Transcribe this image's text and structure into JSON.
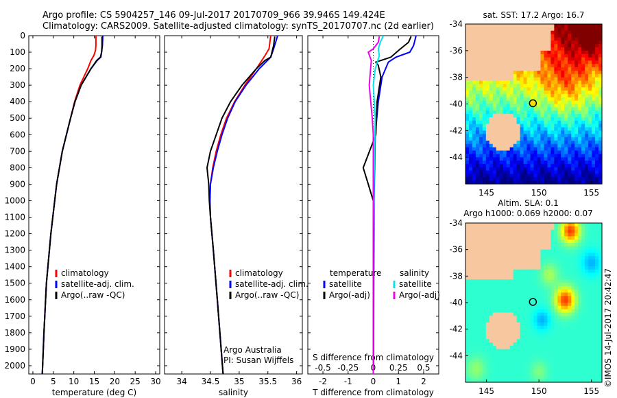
{
  "header": {
    "line1": "Argo profile: CS 5904257_146 09-Jul-2017 20170709_966 39.946S 149.424E",
    "line2": "Climatology: CARS2009. Satellite-adjusted climatology: synTS_20170707.nc (2d earlier)"
  },
  "colors": {
    "climatology": "#ff0000",
    "satellite": "#0000ff",
    "argo": "#000000",
    "sat_salinity": "#00e5ee",
    "argo_salinity": "#ee00ee",
    "land": "#f7c8a0"
  },
  "depth_axis": {
    "ylim": [
      0,
      2050
    ],
    "ticks": [
      0,
      100,
      200,
      300,
      400,
      500,
      600,
      700,
      800,
      900,
      1000,
      1100,
      1200,
      1300,
      1400,
      1500,
      1600,
      1700,
      1800,
      1900,
      2000
    ]
  },
  "chart_data": [
    {
      "type": "line",
      "id": "temperature",
      "xlabel": "temperature (deg C)",
      "xlim": [
        -1,
        31
      ],
      "xticks": [
        0,
        5,
        10,
        15,
        20,
        25,
        30
      ],
      "legend": [
        "climatology",
        "satellite-adj. clim.",
        "Argo(..raw -QC)"
      ],
      "series": [
        {
          "name": "climatology",
          "color": "#ff0000",
          "depth": [
            0,
            60,
            90,
            120,
            150,
            200,
            300,
            400,
            500,
            700,
            900,
            1200,
            1500,
            1800,
            2050
          ],
          "values": [
            15.4,
            15.4,
            15.3,
            14.9,
            14.2,
            13.4,
            11.5,
            10.2,
            9.2,
            7.2,
            5.8,
            4.4,
            3.3,
            2.7,
            2.3
          ]
        },
        {
          "name": "satellite",
          "color": "#0000ff",
          "depth": [
            0,
            60,
            100,
            130,
            150,
            200,
            300,
            400,
            500,
            700,
            900,
            1200,
            1500,
            1800,
            2050
          ],
          "values": [
            17.1,
            17.0,
            16.8,
            16.6,
            15.7,
            14.2,
            11.8,
            10.3,
            9.2,
            7.2,
            5.8,
            4.4,
            3.3,
            2.7,
            2.3
          ]
        },
        {
          "name": "Argo",
          "color": "#000000",
          "depth": [
            5,
            60,
            100,
            130,
            150,
            200,
            300,
            400,
            500,
            700,
            900,
            1200,
            1500,
            1800,
            2050
          ],
          "values": [
            16.9,
            16.9,
            16.8,
            16.5,
            15.6,
            14.2,
            11.8,
            10.3,
            9.2,
            7.2,
            5.8,
            4.4,
            3.3,
            2.7,
            2.3
          ]
        }
      ]
    },
    {
      "type": "line",
      "id": "salinity",
      "xlabel": "salinity",
      "xlim": [
        33.7,
        36.1
      ],
      "xticks": [
        34,
        34.5,
        35,
        35.5,
        36
      ],
      "legend": [
        "climatology",
        "satellite-adj. clim.",
        "Argo(..raw -QC)"
      ],
      "annotations": [
        "Argo Australia",
        "PI: Susan Wijffels"
      ],
      "series": [
        {
          "name": "climatology",
          "color": "#ff0000",
          "depth": [
            0,
            80,
            120,
            200,
            300,
            400,
            500,
            600,
            700,
            800,
            900,
            1000,
            1100,
            1300,
            1600,
            2050
          ],
          "values": [
            35.55,
            35.52,
            35.45,
            35.3,
            35.1,
            34.92,
            34.78,
            34.68,
            34.6,
            34.54,
            34.5,
            34.49,
            34.5,
            34.55,
            34.62,
            34.72
          ]
        },
        {
          "name": "satellite",
          "color": "#0000ff",
          "depth": [
            0,
            80,
            130,
            200,
            300,
            400,
            500,
            600,
            700,
            800,
            900,
            1000,
            1100,
            1300,
            1600,
            2050
          ],
          "values": [
            35.67,
            35.6,
            35.55,
            35.35,
            35.12,
            34.93,
            34.8,
            34.7,
            34.62,
            34.55,
            34.5,
            34.49,
            34.5,
            34.55,
            34.62,
            34.72
          ]
        },
        {
          "name": "Argo",
          "color": "#000000",
          "depth": [
            5,
            60,
            130,
            150,
            200,
            300,
            400,
            500,
            600,
            700,
            800,
            900,
            1000,
            1100,
            1300,
            1600,
            2050
          ],
          "values": [
            35.62,
            35.6,
            35.55,
            35.45,
            35.3,
            35.05,
            34.85,
            34.7,
            34.6,
            34.5,
            34.44,
            34.47,
            34.48,
            34.5,
            34.55,
            34.62,
            34.72
          ]
        }
      ]
    },
    {
      "type": "line",
      "id": "differences",
      "xlabel": "T difference from climatology",
      "xlabel_top": "S difference from climatology",
      "xlim": [
        -2.6,
        2.6
      ],
      "xticks": [
        -2,
        -1,
        0,
        1,
        2
      ],
      "sticks": [
        "-0.5",
        "-0.25",
        "0",
        "0.25",
        "0.5"
      ],
      "legend_t_title": "temperature",
      "legend_s_title": "salinity",
      "legend_t": [
        "satellite",
        "Argo(-adj)"
      ],
      "legend_s": [
        "satellite",
        "Argo(-adj)"
      ],
      "series": [
        {
          "name": "T satellite",
          "color": "#0000ff",
          "depth": [
            0,
            30,
            60,
            100,
            130,
            160,
            250,
            400,
            600,
            1000,
            1500,
            2000
          ],
          "values": [
            1.7,
            1.65,
            1.6,
            1.45,
            0.9,
            0.6,
            0.35,
            0.2,
            0.08,
            0.03,
            0.02,
            0.01
          ]
        },
        {
          "name": "T Argo",
          "color": "#000000",
          "depth": [
            5,
            40,
            90,
            130,
            160,
            180,
            250,
            400,
            600,
            800,
            850,
            900,
            950,
            1000,
            1200,
            1500,
            2000
          ],
          "values": [
            1.5,
            1.4,
            1.0,
            0.7,
            0.1,
            0.2,
            0.3,
            0.15,
            0.1,
            -0.4,
            -0.3,
            -0.2,
            -0.1,
            0.0,
            0.0,
            0.0,
            0.0
          ]
        },
        {
          "name": "S satellite",
          "color": "#00e5ee",
          "depth": [
            0,
            40,
            80,
            120,
            200,
            300,
            500,
            800,
            1200,
            1600,
            2050
          ],
          "values": [
            0.1,
            0.07,
            0.05,
            0.06,
            0.02,
            0.0,
            0.02,
            0.01,
            0.0,
            0.0,
            0.0
          ]
        },
        {
          "name": "S Argo",
          "color": "#ee00ee",
          "depth": [
            5,
            40,
            80,
            100,
            150,
            300,
            500,
            600,
            700,
            800,
            900,
            1000,
            1200,
            1600,
            2050
          ],
          "values": [
            0.06,
            0.05,
            0.0,
            -0.05,
            -0.02,
            -0.04,
            -0.01,
            0.0,
            0.0,
            0.0,
            0.0,
            0.0,
            0.0,
            0.0,
            0.0
          ]
        }
      ]
    },
    {
      "type": "heatmap",
      "id": "sst_map",
      "title": "sat. SST: 17.2  Argo: 16.7",
      "xlim": [
        143,
        156
      ],
      "ylim": [
        -46,
        -34
      ],
      "xticks": [
        145,
        150,
        155
      ],
      "yticks": [
        -34,
        -36,
        -38,
        -40,
        -42,
        -44
      ],
      "marker": {
        "lon": 149.424,
        "lat": -39.946
      }
    },
    {
      "type": "heatmap",
      "id": "sla_map",
      "title": "Altim. SLA: 0.1",
      "title2": "Argo h1000: 0.069  h2000: 0.07",
      "xlim": [
        143,
        156
      ],
      "ylim": [
        -46,
        -34
      ],
      "xticks": [
        145,
        150,
        155
      ],
      "yticks": [
        -34,
        -36,
        -38,
        -40,
        -42,
        -44
      ],
      "marker": {
        "lon": 149.424,
        "lat": -39.946
      }
    }
  ],
  "credit": "©IMOS 14-Jul-2017 20:42:47"
}
